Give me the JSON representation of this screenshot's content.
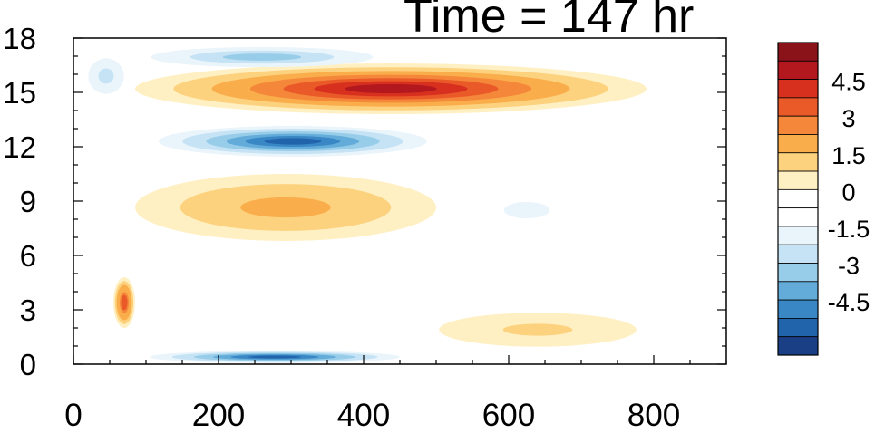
{
  "chart_data": {
    "type": "heatmap",
    "title": "Time = 147 hr",
    "xlabel": "",
    "ylabel": "",
    "xlim": [
      0,
      900
    ],
    "ylim": [
      0,
      18
    ],
    "x_ticks": [
      "0",
      "200",
      "400",
      "600",
      "800"
    ],
    "y_ticks": [
      "0",
      "3",
      "6",
      "9",
      "12",
      "15",
      "18"
    ],
    "colorbar": {
      "labels": [
        "4.5",
        "3",
        "1.5",
        "0",
        "-1.5",
        "-3",
        "-4.5"
      ],
      "levels": [
        5.25,
        4.5,
        3.75,
        3.0,
        2.25,
        1.5,
        0.75,
        0.25,
        -0.25,
        -0.75,
        -1.5,
        -2.25,
        -3.0,
        -3.75,
        -4.5,
        -5.25
      ],
      "colors": [
        "#8a1319",
        "#b2181e",
        "#d7301f",
        "#ea5a29",
        "#f5873a",
        "#f9ad4b",
        "#fdd27e",
        "#fff0c4",
        "#ffffff",
        "#ffffff",
        "#e9f4fb",
        "#c5e3f5",
        "#97cde9",
        "#63acd9",
        "#3a87c5",
        "#2264ac",
        "#1b3f85"
      ]
    },
    "features": [
      {
        "shape": "band",
        "x": [
          85,
          790
        ],
        "y": [
          13.8,
          16.6
        ],
        "peak": 5.0,
        "region": "positive band near 15"
      },
      {
        "shape": "band",
        "x": [
          85,
          520
        ],
        "y": [
          11.3,
          13.3
        ],
        "peak": -5.0,
        "region": "negative band near 12"
      },
      {
        "shape": "band",
        "x": [
          80,
          440
        ],
        "y": [
          16.3,
          17.6
        ],
        "peak": -3.0,
        "region": "negative band near 17"
      },
      {
        "shape": "band",
        "x": [
          75,
          480
        ],
        "y": [
          0.0,
          0.8
        ],
        "peak": -5.0,
        "region": "negative band near 0"
      },
      {
        "shape": "band",
        "x": [
          85,
          500
        ],
        "y": [
          6.8,
          10.5
        ],
        "peak": 2.0,
        "region": "positive region 7-10"
      },
      {
        "shape": "band",
        "x": [
          480,
          800
        ],
        "y": [
          0.8,
          3.0
        ],
        "peak": 1.0,
        "region": "weak positive near 1-3"
      },
      {
        "shape": "band",
        "x": [
          450,
          800
        ],
        "y": [
          6.0,
          11.0
        ],
        "peak": -0.8,
        "region": "weak negative 6-11"
      },
      {
        "shape": "blob",
        "x": [
          55,
          85
        ],
        "y": [
          2.0,
          4.8
        ],
        "peak": 3.5,
        "region": "positive near front"
      },
      {
        "shape": "blob",
        "x": [
          10,
          80
        ],
        "y": [
          14.5,
          17.3
        ],
        "peak": -2.0,
        "region": "negative upper left"
      }
    ]
  }
}
